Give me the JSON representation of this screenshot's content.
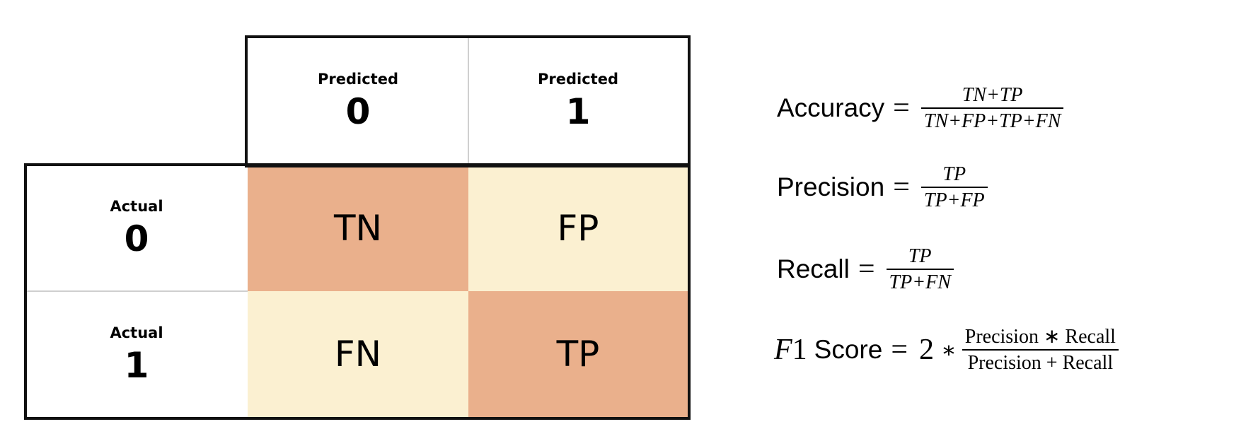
{
  "matrix": {
    "predicted_0": {
      "label": "Predicted",
      "value": "0"
    },
    "predicted_1": {
      "label": "Predicted",
      "value": "1"
    },
    "actual_0": {
      "label": "Actual",
      "value": "0"
    },
    "actual_1": {
      "label": "Actual",
      "value": "1"
    },
    "tn": "TN",
    "fp": "FP",
    "fn": "FN",
    "tp": "TP",
    "colors": {
      "diagonal": "#eab08c",
      "off_diagonal": "#fbf0d1",
      "border": "#111111"
    }
  },
  "formulas": {
    "accuracy": {
      "label": "Accuracy",
      "eq": "=",
      "numerator": "TN+TP",
      "denominator": "TN+FP+TP+FN"
    },
    "precision": {
      "label": "Precision",
      "eq": "=",
      "numerator": "TP",
      "denominator": "TP+FP"
    },
    "recall": {
      "label": "Recall",
      "eq": "=",
      "numerator": "TP",
      "denominator": "TP+FN"
    },
    "f1": {
      "f": "F",
      "one": "1",
      "label": "Score",
      "eq": "=",
      "two": "2",
      "star": "∗",
      "numerator": "Precision ∗ Recall",
      "denominator": "Precision + Recall"
    }
  }
}
